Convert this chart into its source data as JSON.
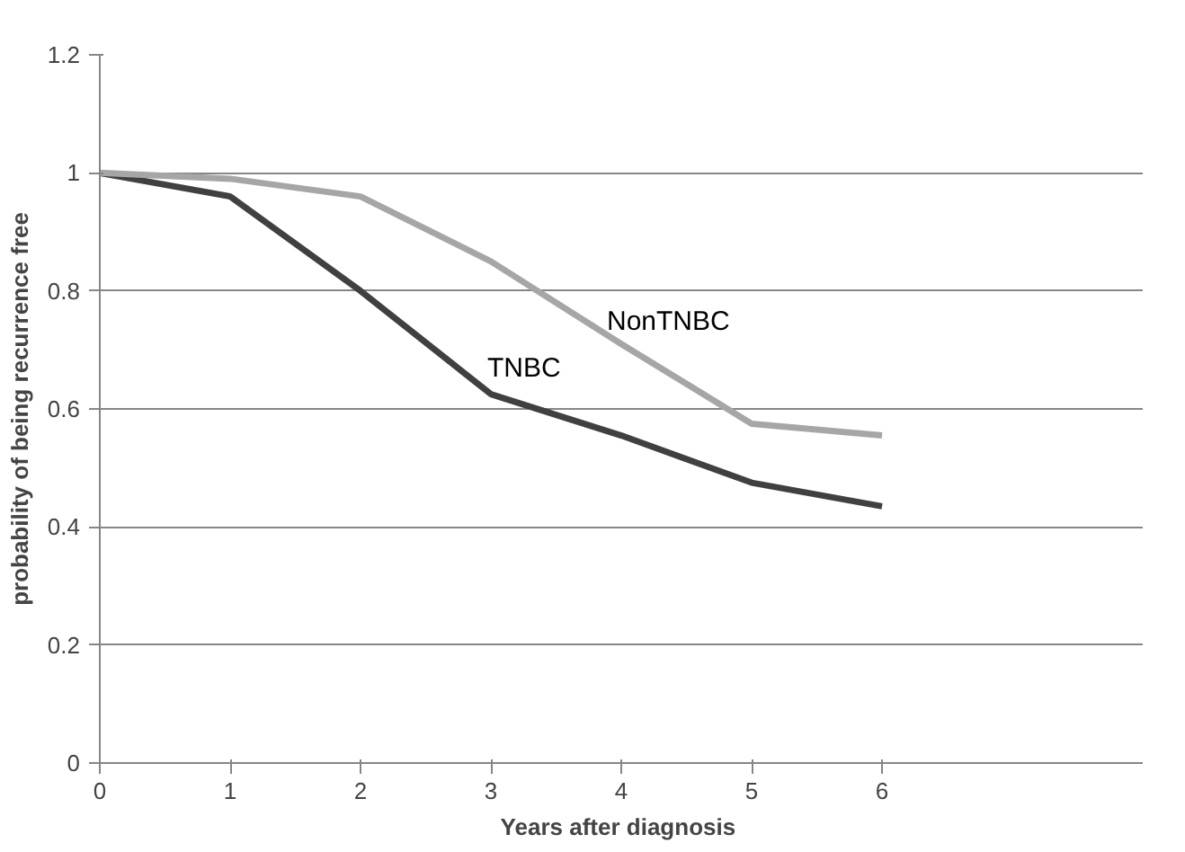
{
  "chart_data": {
    "type": "line",
    "xlabel": "Years  after diagnosis",
    "ylabel": "probability of being recurrence free",
    "x": [
      0,
      1,
      2,
      3,
      4,
      5,
      6
    ],
    "series": [
      {
        "name": "TNBC",
        "color": "#404040",
        "values": [
          1.0,
          0.96,
          0.8,
          0.625,
          0.555,
          0.475,
          0.435
        ]
      },
      {
        "name": "NonTNBC",
        "color": "#a6a6a6",
        "values": [
          1.0,
          0.99,
          0.96,
          0.85,
          0.71,
          0.575,
          0.555
        ]
      }
    ],
    "xlim": [
      0,
      8
    ],
    "xticks": [
      0,
      1,
      2,
      3,
      4,
      5,
      6
    ],
    "ylim": [
      0,
      1.2
    ],
    "yticks": [
      0,
      0.2,
      0.4,
      0.6,
      0.8,
      1,
      1.2
    ],
    "grid": "y",
    "legend": false,
    "marker": "none",
    "line_style": "solid"
  }
}
